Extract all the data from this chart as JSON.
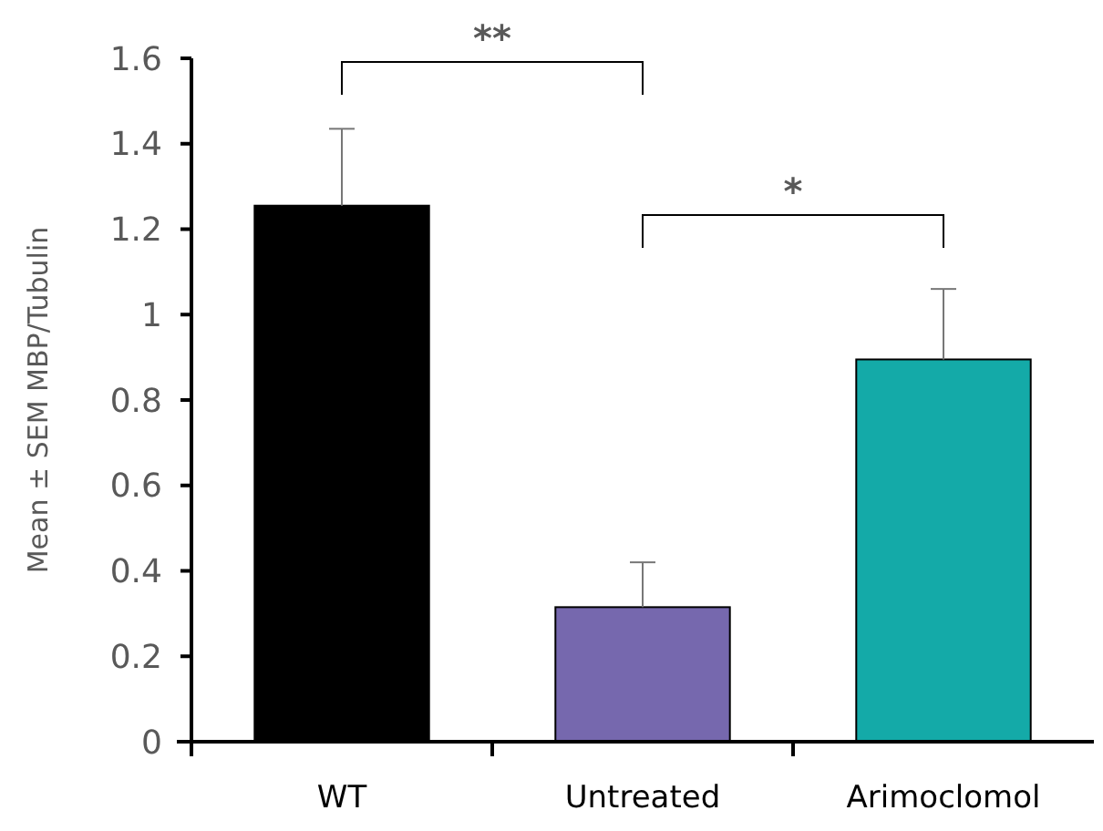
{
  "chart_data": {
    "type": "bar",
    "ylabel": "Mean ± SEM MBP/Tubulin",
    "categories": [
      "WT",
      "Untreated",
      "Arimoclomol"
    ],
    "values": [
      1.255,
      0.315,
      0.895
    ],
    "colors": [
      "#000000",
      "#7668ae",
      "#14aaa8"
    ],
    "errors": [
      [
        1.255,
        1.435
      ],
      [
        0.315,
        0.42
      ],
      [
        0.895,
        1.06
      ]
    ],
    "ylim": [
      0,
      1.6
    ],
    "yticks": [
      0,
      0.2,
      0.4,
      0.6,
      0.8,
      1,
      1.2,
      1.4,
      1.6
    ],
    "grid": false,
    "annotations": [
      "**",
      "*"
    ]
  }
}
